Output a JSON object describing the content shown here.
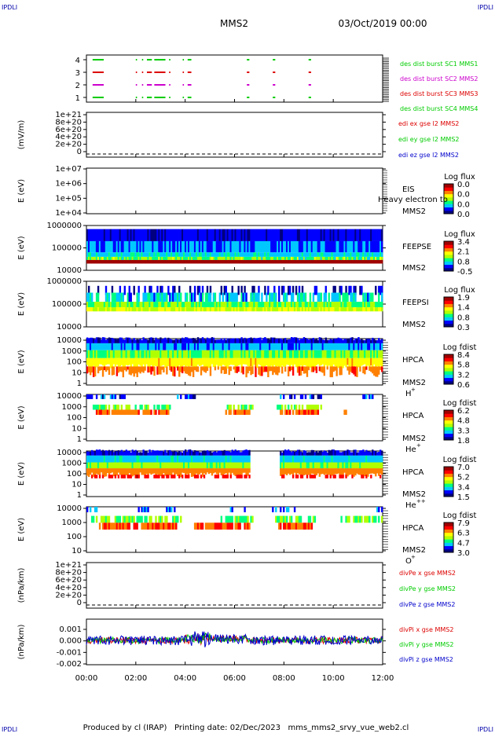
{
  "header": {
    "mission_tag": "IPDLI",
    "spacecraft": "MMS2",
    "datetime": "03/Oct/2019 00:00"
  },
  "footer": {
    "text": "Produced by cl (IRAP)   Printing date: 02/Dec/2023   mms_mms2_srvy_vue_web2.cl"
  },
  "colorscale": [
    "#000080",
    "#0000ff",
    "#00c8ff",
    "#00ff80",
    "#b0ff00",
    "#ffff00",
    "#ff8000",
    "#ff0000",
    "#a00000"
  ],
  "chart_data": [
    {
      "type": "line",
      "panel": "burst-availability",
      "yticks": [
        "4",
        "3",
        "2",
        "1"
      ],
      "series": [
        {
          "name": "des dist burst SC1 MMS1",
          "color": "#00cc00",
          "level": 4,
          "intervals": [
            [
              0.25,
              0.7
            ],
            [
              2.0,
              2.05
            ],
            [
              2.25,
              2.3
            ],
            [
              2.45,
              2.65
            ],
            [
              2.75,
              3.2
            ],
            [
              3.35,
              3.4
            ],
            [
              3.9,
              3.95
            ],
            [
              4.1,
              4.25
            ],
            [
              6.5,
              6.6
            ],
            [
              7.55,
              7.65
            ],
            [
              9.0,
              9.1
            ]
          ]
        },
        {
          "name": "des dist burst SC2 MMS2",
          "color": "#cc00cc",
          "level": 2,
          "intervals": [
            [
              0.25,
              0.7
            ],
            [
              2.0,
              2.05
            ],
            [
              2.25,
              2.3
            ],
            [
              2.45,
              2.65
            ],
            [
              2.75,
              3.2
            ],
            [
              3.35,
              3.4
            ],
            [
              3.9,
              3.95
            ],
            [
              4.1,
              4.25
            ],
            [
              6.5,
              6.6
            ],
            [
              7.55,
              7.65
            ],
            [
              9.0,
              9.1
            ]
          ]
        },
        {
          "name": "des dist burst SC3 MMS3",
          "color": "#dd0000",
          "level": 3,
          "intervals": [
            [
              0.25,
              0.7
            ],
            [
              2.0,
              2.05
            ],
            [
              2.25,
              2.3
            ],
            [
              2.45,
              2.65
            ],
            [
              2.75,
              3.2
            ],
            [
              3.35,
              3.4
            ],
            [
              3.9,
              3.95
            ],
            [
              4.1,
              4.25
            ],
            [
              6.5,
              6.6
            ],
            [
              7.55,
              7.65
            ],
            [
              9.0,
              9.1
            ]
          ]
        },
        {
          "name": "des dist burst SC4 MMS4",
          "color": "#00cc00",
          "level": 1,
          "intervals": [
            [
              0.25,
              0.7
            ],
            [
              2.0,
              2.05
            ],
            [
              2.25,
              2.3
            ],
            [
              2.45,
              2.65
            ],
            [
              2.75,
              3.2
            ],
            [
              3.35,
              3.4
            ],
            [
              3.9,
              3.95
            ],
            [
              4.1,
              4.25
            ],
            [
              6.5,
              6.6
            ],
            [
              7.55,
              7.65
            ],
            [
              9.0,
              9.1
            ]
          ]
        }
      ]
    },
    {
      "type": "line",
      "panel": "edi-electric-field",
      "ylabel": "(mV/m)",
      "yticks": [
        "1e+21",
        "8e+20",
        "6e+20",
        "4e+20",
        "2e+20",
        "0"
      ],
      "ylim": [
        0,
        1e+21
      ],
      "series": [
        {
          "name": "edi ex gse l2 MMS2",
          "color": "#dd0000"
        },
        {
          "name": "edi ey gse l2 MMS2",
          "color": "#00cc00"
        },
        {
          "name": "edi ez gse l2 MMS2",
          "color": "#0000cc"
        }
      ]
    },
    {
      "type": "heatmap",
      "panel": "eis",
      "ylabel": "E (eV)",
      "yticks": [
        "1e+07",
        "1e+06",
        "1e+05",
        "1e+04"
      ],
      "ylim": [
        10000.0,
        10000000.0
      ],
      "instrument": "EIS",
      "spacecraft": "MMS2",
      "overlay": "Heavy electron to",
      "colorbar": {
        "title": "Log flux",
        "ticks": [
          "0.0",
          "0.0",
          "0.0",
          "0.0"
        ]
      }
    },
    {
      "type": "heatmap",
      "panel": "feeps-electron",
      "ylabel": "E (eV)",
      "yticks": [
        "1000000",
        "100000",
        "10000"
      ],
      "ylim": [
        10000.0,
        1000000.0
      ],
      "instrument": "FEEPSE",
      "spacecraft": "MMS2",
      "colorbar": {
        "title": "Log flux",
        "ticks": [
          "3.4",
          "2.1",
          "0.8",
          "-0.5"
        ]
      }
    },
    {
      "type": "heatmap",
      "panel": "feeps-ion",
      "ylabel": "E (eV)",
      "yticks": [
        "1000000",
        "100000",
        "10000"
      ],
      "ylim": [
        10000.0,
        1000000.0
      ],
      "instrument": "FEEPSI",
      "spacecraft": "MMS2",
      "colorbar": {
        "title": "Log flux",
        "ticks": [
          "1.9",
          "1.4",
          "0.8",
          "0.3"
        ]
      }
    },
    {
      "type": "heatmap",
      "panel": "hpca-h",
      "ylabel": "E (eV)",
      "yticks": [
        "10000",
        "1000",
        "100",
        "10",
        "1"
      ],
      "ylim": [
        1,
        40000
      ],
      "instrument": "HPCA",
      "spacecraft": "MMS2",
      "species": "H",
      "species_sup": "+",
      "colorbar": {
        "title": "Log fdist",
        "ticks": [
          "8.4",
          "5.8",
          "3.2",
          "0.6"
        ]
      }
    },
    {
      "type": "heatmap",
      "panel": "hpca-he",
      "ylabel": "E (eV)",
      "yticks": [
        "10000",
        "1000",
        "100",
        "10",
        "1"
      ],
      "ylim": [
        1,
        40000
      ],
      "instrument": "HPCA",
      "spacecraft": "MMS2",
      "species": "He",
      "species_sup": "+",
      "colorbar": {
        "title": "Log fdist",
        "ticks": [
          "6.2",
          "4.8",
          "3.3",
          "1.8"
        ]
      }
    },
    {
      "type": "heatmap",
      "panel": "hpca-he2",
      "ylabel": "E (eV)",
      "yticks": [
        "10000",
        "1000",
        "100",
        "10",
        "1"
      ],
      "ylim": [
        1,
        40000
      ],
      "instrument": "HPCA",
      "spacecraft": "MMS2",
      "species": "He",
      "species_sup": "++",
      "colorbar": {
        "title": "Log fdist",
        "ticks": [
          "7.0",
          "5.2",
          "3.4",
          "1.5"
        ]
      }
    },
    {
      "type": "heatmap",
      "panel": "hpca-o",
      "ylabel": "E (eV)",
      "yticks": [
        "10000",
        "1000",
        "100",
        "10"
      ],
      "ylim": [
        10,
        40000
      ],
      "instrument": "HPCA",
      "spacecraft": "MMS2",
      "species": "O",
      "species_sup": "+",
      "colorbar": {
        "title": "Log fdist",
        "ticks": [
          "7.9",
          "6.3",
          "4.7",
          "3.0"
        ]
      }
    },
    {
      "type": "line",
      "panel": "divpe",
      "ylabel": "(nPa/km)",
      "yticks": [
        "1e+21",
        "8e+20",
        "6e+20",
        "4e+20",
        "2e+20",
        "0"
      ],
      "ylim": [
        0,
        1e+21
      ],
      "series": [
        {
          "name": "divPe x gse MMS2",
          "color": "#dd0000"
        },
        {
          "name": "divPe y gse MMS2",
          "color": "#00cc00"
        },
        {
          "name": "divPe z gse MMS2",
          "color": "#0000cc"
        }
      ]
    },
    {
      "type": "line",
      "panel": "divpi",
      "ylabel": "(nPa/km)",
      "yticks": [
        "0.001",
        "0.000",
        "-0.001",
        "-0.002"
      ],
      "ylim": [
        -0.0025,
        0.0015
      ],
      "series": [
        {
          "name": "divPi x gse MMS2",
          "color": "#dd0000"
        },
        {
          "name": "divPi y gse MMS2",
          "color": "#00cc00"
        },
        {
          "name": "divPi z gse MMS2",
          "color": "#0000cc"
        }
      ]
    }
  ],
  "xaxis": {
    "ticks": [
      "00:00",
      "02:00",
      "04:00",
      "06:00",
      "08:00",
      "10:00",
      "12:00"
    ],
    "xlim_hours": [
      0,
      12
    ]
  }
}
